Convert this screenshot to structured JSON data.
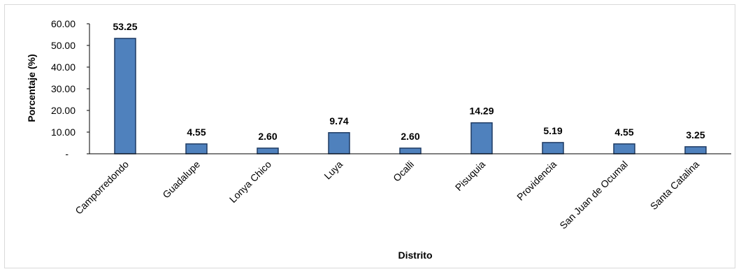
{
  "chart_data": {
    "type": "bar",
    "title": "",
    "xlabel": "Distrito",
    "ylabel": "Porcentaje (%)",
    "ylim": [
      0,
      60
    ],
    "yticks": [
      "-",
      "10.00",
      "20.00",
      "30.00",
      "40.00",
      "50.00",
      "60.00"
    ],
    "categories": [
      "Camporredondo",
      "Guadalupe",
      "Lonya Chico",
      "Luya",
      "Ocalli",
      "Pisuquia",
      "Providencia",
      "San Juan de Ocumal",
      "Santa Catalina"
    ],
    "values": [
      53.25,
      4.55,
      2.6,
      9.74,
      2.6,
      14.29,
      5.19,
      4.55,
      3.25
    ],
    "value_labels": [
      "53.25",
      "4.55",
      "2.60",
      "9.74",
      "2.60",
      "14.29",
      "5.19",
      "4.55",
      "3.25"
    ],
    "grid": false,
    "legend": "none",
    "bar_color": "#4f81bd",
    "bar_edge_color": "#1f3b63"
  }
}
